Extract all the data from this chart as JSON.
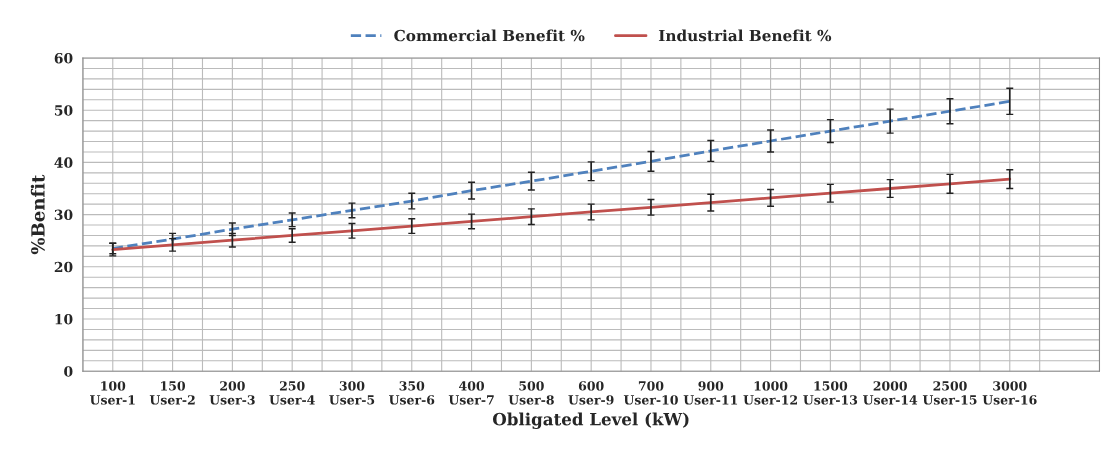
{
  "chart_data": {
    "type": "line",
    "categories": [
      "100\nUser-1",
      "150\nUser-2",
      "200\nUser-3",
      "250\nUser-4",
      "300\nUser-5",
      "350\nUser-6",
      "400\nUser-7",
      "500\nUser-8",
      "600\nUser-9",
      "700\nUser-10",
      "900\nUser-11",
      "1000\nUser-12",
      "1500\nUser-13",
      "2000\nUser-14",
      "2500\nUser-15",
      "3000\nUser-16"
    ],
    "series": [
      {
        "name": "Commercial Benefit %",
        "color": "#4f81bd",
        "line_style": "dashed",
        "values": [
          23.5,
          25.3,
          27.2,
          29.0,
          30.8,
          32.6,
          34.6,
          36.4,
          38.3,
          40.2,
          42.2,
          44.1,
          46.0,
          47.9,
          49.8,
          51.7
        ],
        "errors": [
          1.0,
          1.1,
          1.2,
          1.3,
          1.4,
          1.5,
          1.6,
          1.7,
          1.8,
          1.9,
          2.0,
          2.1,
          2.2,
          2.3,
          2.4,
          2.5
        ]
      },
      {
        "name": "Industrial Benefit %",
        "color": "#c0504d",
        "line_style": "solid",
        "values": [
          23.3,
          24.2,
          25.1,
          26.0,
          26.9,
          27.8,
          28.7,
          29.6,
          30.5,
          31.4,
          32.3,
          33.2,
          34.1,
          35.0,
          35.9,
          36.8
        ],
        "errors": [
          1.2,
          1.2,
          1.3,
          1.3,
          1.4,
          1.4,
          1.4,
          1.5,
          1.5,
          1.5,
          1.6,
          1.6,
          1.7,
          1.7,
          1.8,
          1.8
        ]
      }
    ],
    "xlabel": "Obligated Level (kW)",
    "ylabel": "%Benfit",
    "ylim": [
      0,
      60
    ],
    "yticks": [
      0,
      10,
      20,
      30,
      40,
      50,
      60
    ],
    "grid": true,
    "legend": "top",
    "marker": "none"
  }
}
